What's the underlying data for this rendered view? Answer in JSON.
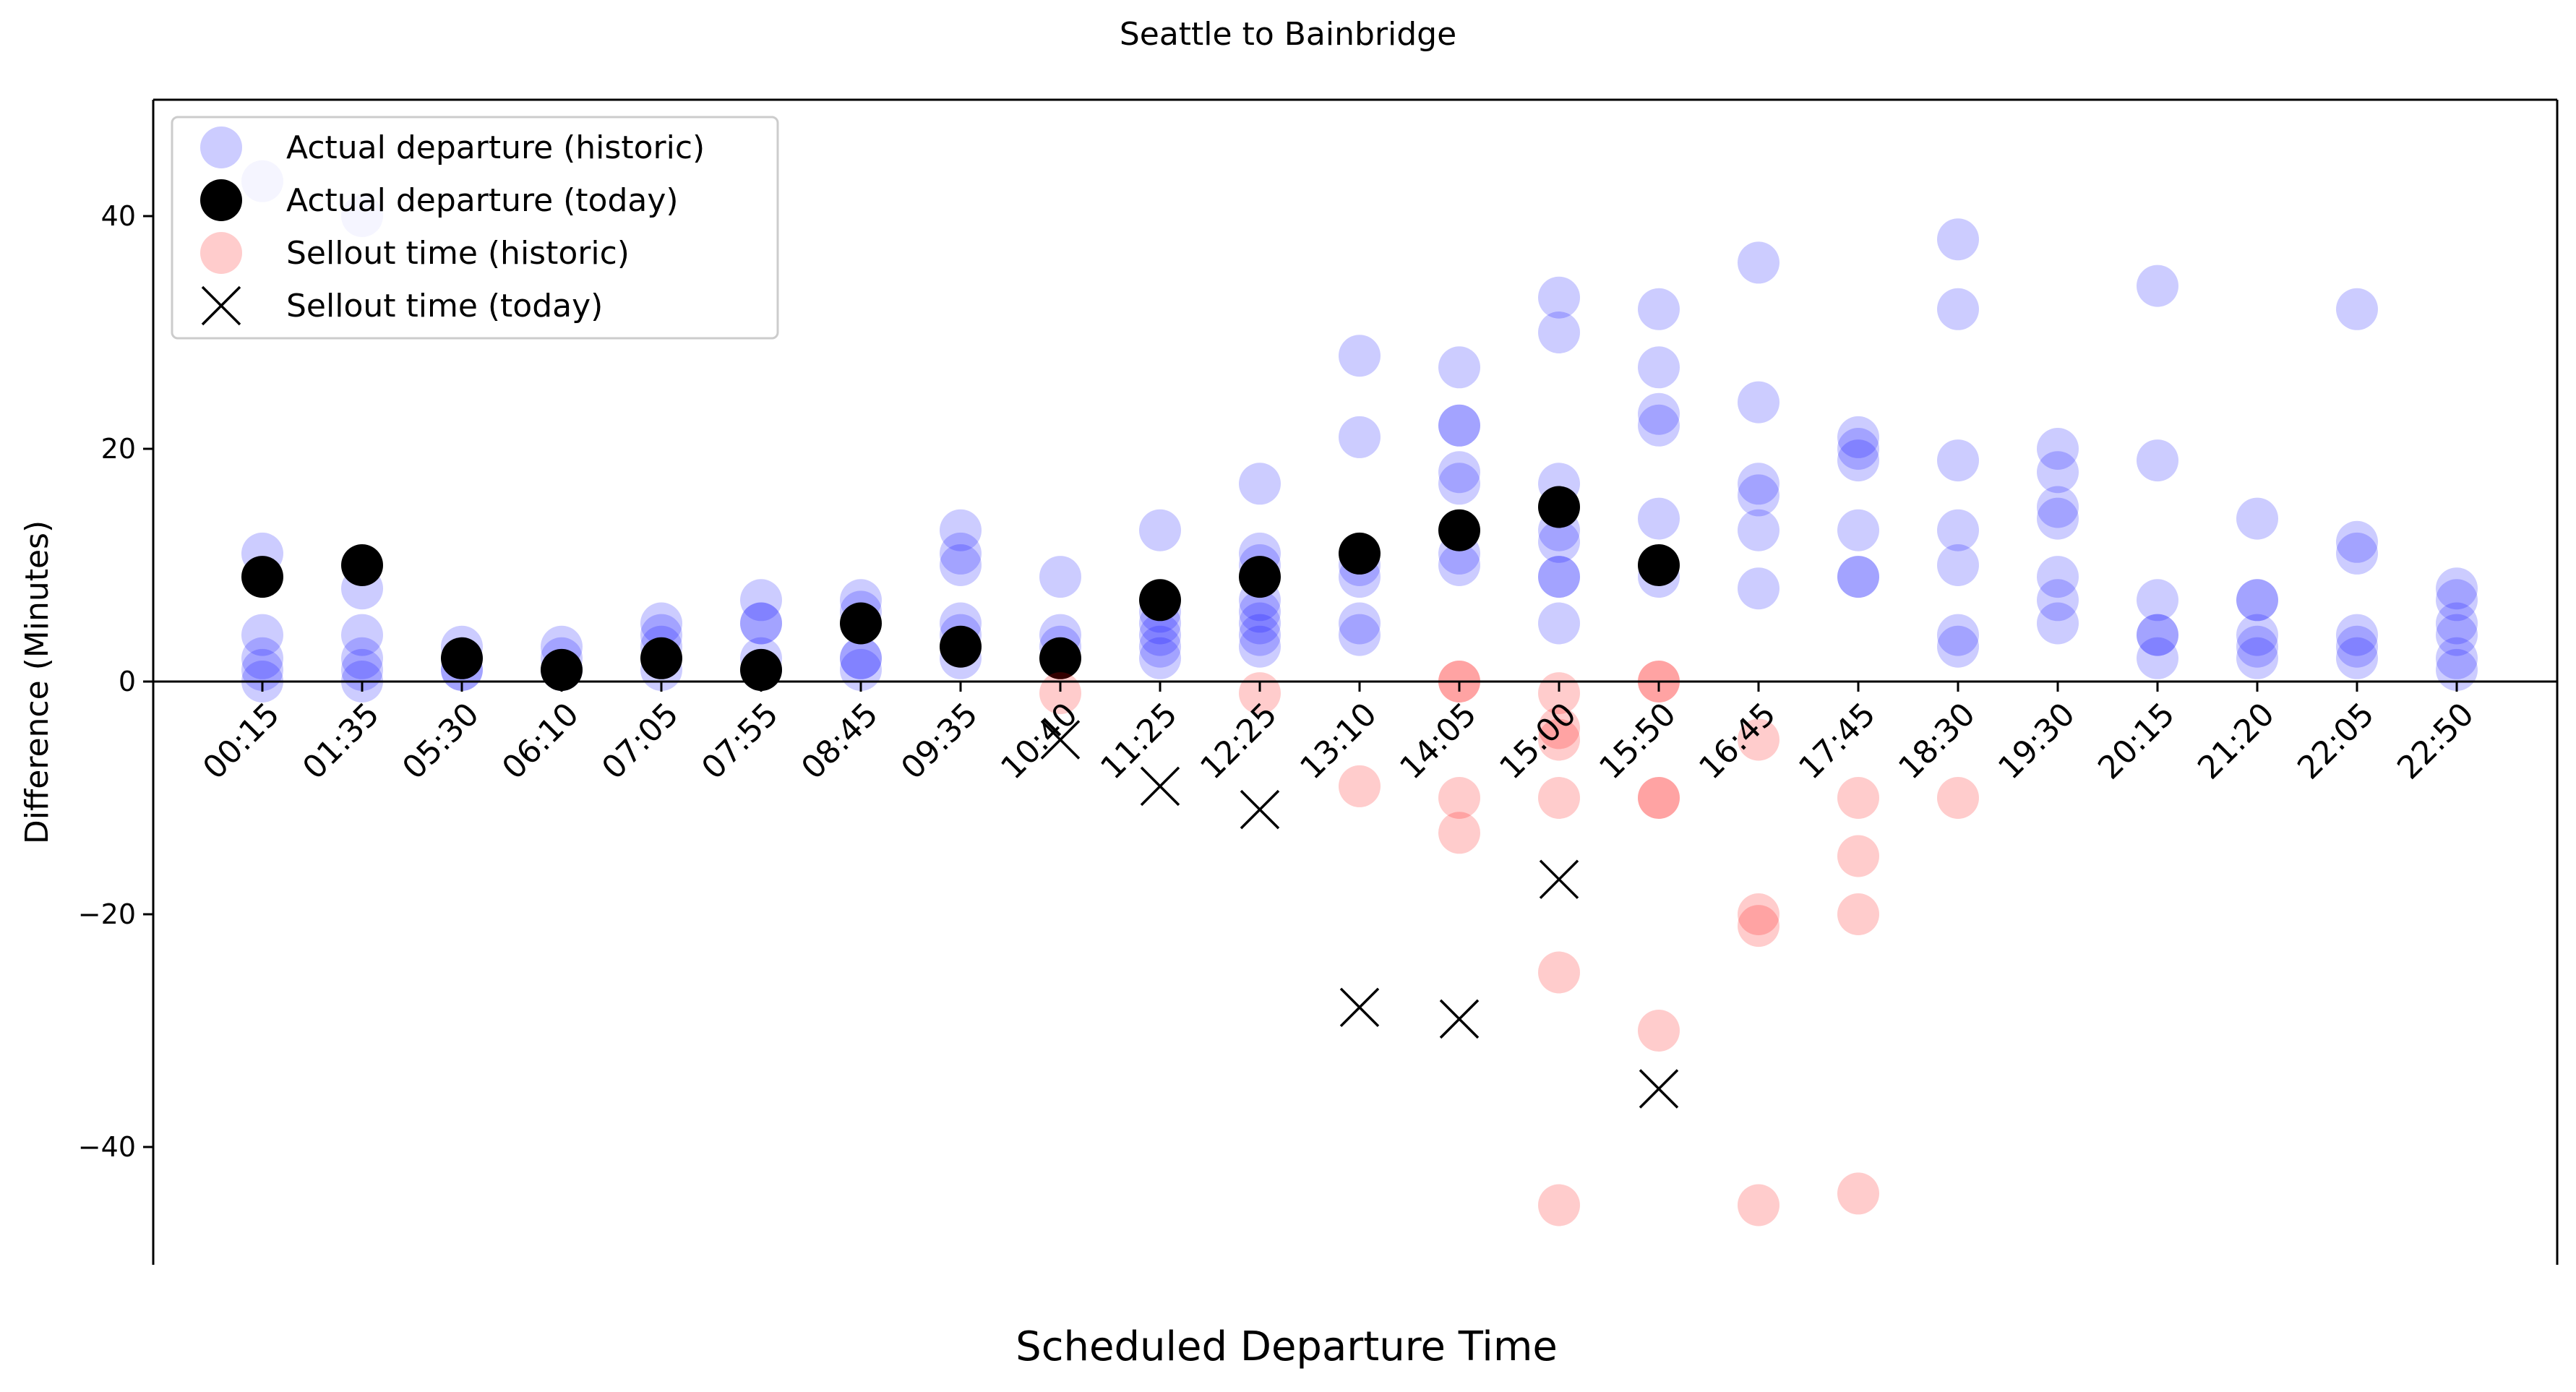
{
  "chart_data": {
    "type": "scatter",
    "title": "Seattle to Bainbridge",
    "xlabel": "Scheduled Departure Time",
    "ylabel": "Difference (Minutes)",
    "ylim": [
      -50,
      50
    ],
    "yticks": [
      -40,
      -20,
      0,
      20,
      40
    ],
    "categories": [
      "00:15",
      "01:35",
      "05:30",
      "06:10",
      "07:05",
      "07:55",
      "08:45",
      "09:35",
      "10:40",
      "11:25",
      "12:25",
      "13:10",
      "14:05",
      "15:00",
      "15:50",
      "16:45",
      "17:45",
      "18:30",
      "19:30",
      "20:15",
      "21:20",
      "22:05",
      "22:50"
    ],
    "legend_position": "top-left",
    "grid": false,
    "zero_line": true,
    "series": [
      {
        "name": "Actual departure (historic)",
        "marker": "circle",
        "color": "#0000ff",
        "alpha": 0.2,
        "points": [
          [
            "00:15",
            43
          ],
          [
            "00:15",
            11
          ],
          [
            "00:15",
            4
          ],
          [
            "00:15",
            2
          ],
          [
            "00:15",
            1
          ],
          [
            "00:15",
            0
          ],
          [
            "01:35",
            40
          ],
          [
            "01:35",
            8
          ],
          [
            "01:35",
            4
          ],
          [
            "01:35",
            2
          ],
          [
            "01:35",
            1
          ],
          [
            "01:35",
            0
          ],
          [
            "05:30",
            3
          ],
          [
            "05:30",
            2
          ],
          [
            "05:30",
            1
          ],
          [
            "05:30",
            1
          ],
          [
            "06:10",
            3
          ],
          [
            "06:10",
            2
          ],
          [
            "06:10",
            1
          ],
          [
            "06:10",
            1
          ],
          [
            "07:05",
            5
          ],
          [
            "07:05",
            4
          ],
          [
            "07:05",
            3
          ],
          [
            "07:05",
            1
          ],
          [
            "07:55",
            7
          ],
          [
            "07:55",
            5
          ],
          [
            "07:55",
            5
          ],
          [
            "07:55",
            2
          ],
          [
            "07:55",
            1
          ],
          [
            "08:45",
            7
          ],
          [
            "08:45",
            6
          ],
          [
            "08:45",
            2
          ],
          [
            "08:45",
            2
          ],
          [
            "08:45",
            1
          ],
          [
            "09:35",
            13
          ],
          [
            "09:35",
            11
          ],
          [
            "09:35",
            10
          ],
          [
            "09:35",
            5
          ],
          [
            "09:35",
            4
          ],
          [
            "09:35",
            2
          ],
          [
            "10:40",
            9
          ],
          [
            "10:40",
            4
          ],
          [
            "10:40",
            3
          ],
          [
            "11:25",
            13
          ],
          [
            "11:25",
            6
          ],
          [
            "11:25",
            5
          ],
          [
            "11:25",
            4
          ],
          [
            "11:25",
            3
          ],
          [
            "11:25",
            2
          ],
          [
            "12:25",
            17
          ],
          [
            "12:25",
            11
          ],
          [
            "12:25",
            10
          ],
          [
            "12:25",
            7
          ],
          [
            "12:25",
            6
          ],
          [
            "12:25",
            5
          ],
          [
            "12:25",
            4
          ],
          [
            "12:25",
            3
          ],
          [
            "13:10",
            28
          ],
          [
            "13:10",
            21
          ],
          [
            "13:10",
            10
          ],
          [
            "13:10",
            9
          ],
          [
            "13:10",
            5
          ],
          [
            "13:10",
            4
          ],
          [
            "14:05",
            27
          ],
          [
            "14:05",
            22
          ],
          [
            "14:05",
            22
          ],
          [
            "14:05",
            18
          ],
          [
            "14:05",
            17
          ],
          [
            "14:05",
            11
          ],
          [
            "14:05",
            10
          ],
          [
            "15:00",
            33
          ],
          [
            "15:00",
            30
          ],
          [
            "15:00",
            17
          ],
          [
            "15:00",
            13
          ],
          [
            "15:00",
            12
          ],
          [
            "15:00",
            9
          ],
          [
            "15:00",
            9
          ],
          [
            "15:00",
            5
          ],
          [
            "15:50",
            32
          ],
          [
            "15:50",
            27
          ],
          [
            "15:50",
            23
          ],
          [
            "15:50",
            22
          ],
          [
            "15:50",
            14
          ],
          [
            "15:50",
            9
          ],
          [
            "16:45",
            36
          ],
          [
            "16:45",
            24
          ],
          [
            "16:45",
            17
          ],
          [
            "16:45",
            16
          ],
          [
            "16:45",
            13
          ],
          [
            "16:45",
            8
          ],
          [
            "17:45",
            21
          ],
          [
            "17:45",
            20
          ],
          [
            "17:45",
            19
          ],
          [
            "17:45",
            13
          ],
          [
            "17:45",
            9
          ],
          [
            "17:45",
            9
          ],
          [
            "18:30",
            38
          ],
          [
            "18:30",
            32
          ],
          [
            "18:30",
            19
          ],
          [
            "18:30",
            13
          ],
          [
            "18:30",
            10
          ],
          [
            "18:30",
            4
          ],
          [
            "18:30",
            3
          ],
          [
            "19:30",
            20
          ],
          [
            "19:30",
            18
          ],
          [
            "19:30",
            15
          ],
          [
            "19:30",
            14
          ],
          [
            "19:30",
            9
          ],
          [
            "19:30",
            7
          ],
          [
            "19:30",
            5
          ],
          [
            "20:15",
            34
          ],
          [
            "20:15",
            19
          ],
          [
            "20:15",
            7
          ],
          [
            "20:15",
            4
          ],
          [
            "20:15",
            4
          ],
          [
            "20:15",
            2
          ],
          [
            "21:20",
            14
          ],
          [
            "21:20",
            7
          ],
          [
            "21:20",
            7
          ],
          [
            "21:20",
            4
          ],
          [
            "21:20",
            3
          ],
          [
            "21:20",
            2
          ],
          [
            "22:05",
            32
          ],
          [
            "22:05",
            12
          ],
          [
            "22:05",
            11
          ],
          [
            "22:05",
            4
          ],
          [
            "22:05",
            3
          ],
          [
            "22:05",
            2
          ],
          [
            "22:50",
            8
          ],
          [
            "22:50",
            7
          ],
          [
            "22:50",
            5
          ],
          [
            "22:50",
            4
          ],
          [
            "22:50",
            2
          ],
          [
            "22:50",
            1
          ]
        ]
      },
      {
        "name": "Actual departure (today)",
        "marker": "circle",
        "color": "#000000",
        "alpha": 1,
        "points": [
          [
            "00:15",
            9
          ],
          [
            "01:35",
            10
          ],
          [
            "05:30",
            2
          ],
          [
            "06:10",
            1
          ],
          [
            "07:05",
            2
          ],
          [
            "07:55",
            1
          ],
          [
            "08:45",
            5
          ],
          [
            "09:35",
            3
          ],
          [
            "10:40",
            2
          ],
          [
            "11:25",
            7
          ],
          [
            "12:25",
            9
          ],
          [
            "13:10",
            11
          ],
          [
            "14:05",
            13
          ],
          [
            "15:00",
            15
          ],
          [
            "15:50",
            10
          ]
        ]
      },
      {
        "name": "Sellout time (historic)",
        "marker": "circle",
        "color": "#ff0000",
        "alpha": 0.2,
        "points": [
          [
            "10:40",
            -1
          ],
          [
            "12:25",
            -1
          ],
          [
            "13:10",
            -9
          ],
          [
            "14:05",
            0
          ],
          [
            "14:05",
            0
          ],
          [
            "14:05",
            -10
          ],
          [
            "14:05",
            -13
          ],
          [
            "15:00",
            -1
          ],
          [
            "15:00",
            -4
          ],
          [
            "15:00",
            -5
          ],
          [
            "15:00",
            -10
          ],
          [
            "15:00",
            -25
          ],
          [
            "15:00",
            -45
          ],
          [
            "15:50",
            0
          ],
          [
            "15:50",
            0
          ],
          [
            "15:50",
            -10
          ],
          [
            "15:50",
            -10
          ],
          [
            "15:50",
            -30
          ],
          [
            "16:45",
            -5
          ],
          [
            "16:45",
            -20
          ],
          [
            "16:45",
            -21
          ],
          [
            "16:45",
            -45
          ],
          [
            "17:45",
            -10
          ],
          [
            "17:45",
            -15
          ],
          [
            "17:45",
            -20
          ],
          [
            "17:45",
            -44
          ],
          [
            "18:30",
            -10
          ]
        ]
      },
      {
        "name": "Sellout time (today)",
        "marker": "x",
        "color": "#000000",
        "alpha": 1,
        "points": [
          [
            "10:40",
            -5
          ],
          [
            "11:25",
            -9
          ],
          [
            "12:25",
            -11
          ],
          [
            "13:10",
            -28
          ],
          [
            "14:05",
            -29
          ],
          [
            "15:00",
            -17
          ],
          [
            "15:50",
            -35
          ]
        ]
      }
    ]
  }
}
